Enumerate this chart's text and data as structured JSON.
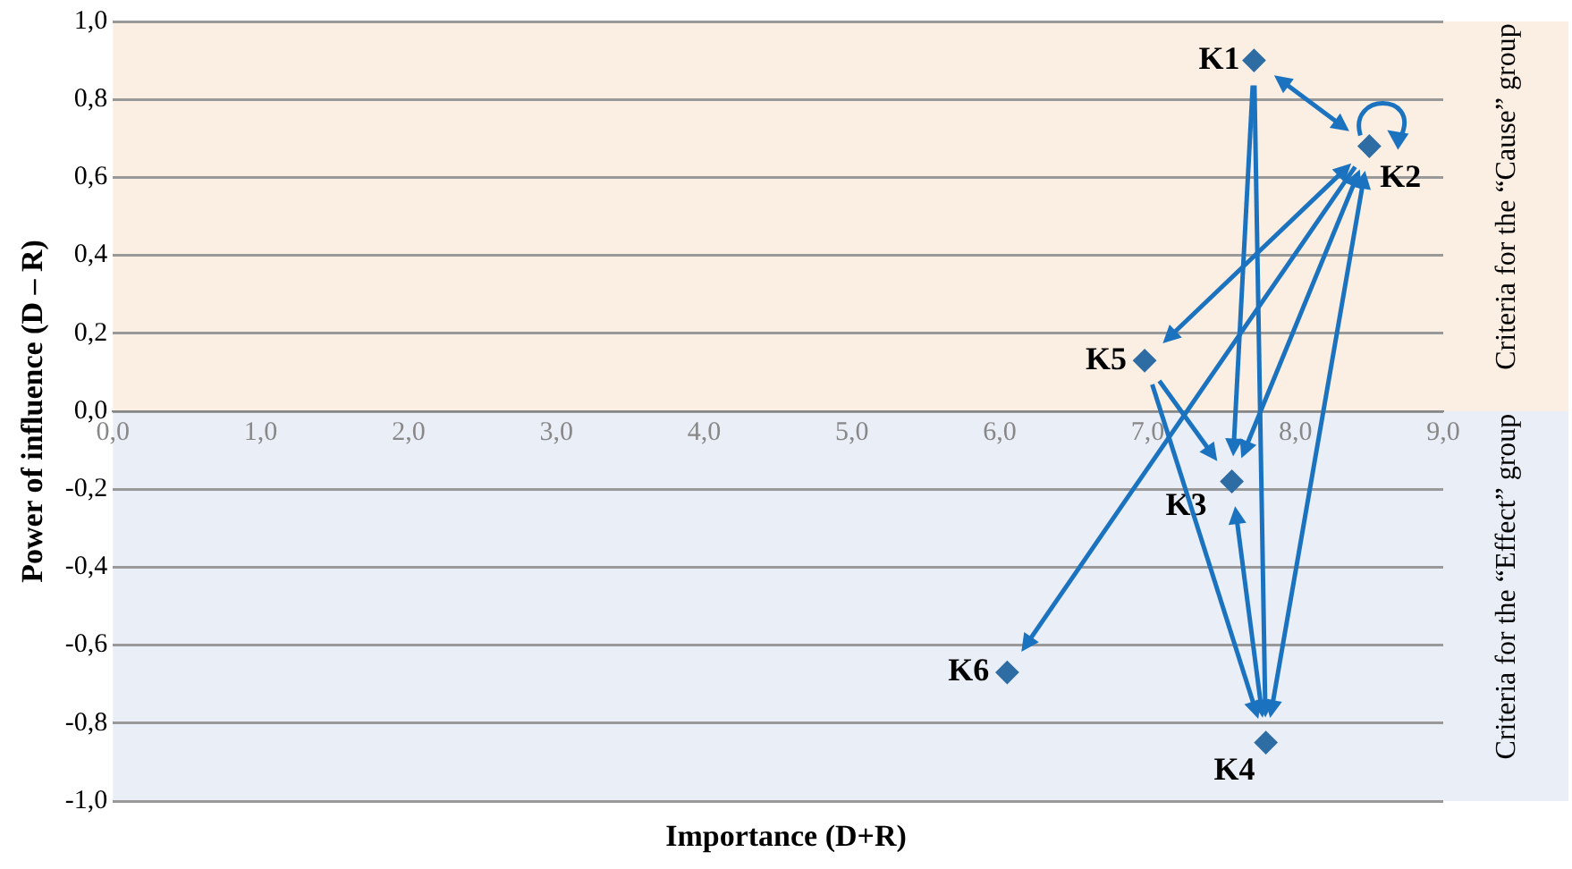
{
  "chart_data": {
    "type": "scatter",
    "xlabel": "Importance (D+R)",
    "ylabel": "Power of influence (D – R)",
    "series": [
      {
        "color": "#2e6da4",
        "x": [
          7.72,
          8.5,
          7.57,
          7.8,
          6.98,
          6.05
        ],
        "values": [
          0.9,
          0.68,
          -0.18,
          -0.85,
          0.13,
          -0.67
        ]
      }
    ],
    "annotations": [
      {
        "text": "K1",
        "x": 7.72,
        "y": 0.9
      },
      {
        "text": "K2",
        "x": 8.5,
        "y": 0.68
      },
      {
        "text": "K3",
        "x": 7.57,
        "y": -0.18
      },
      {
        "text": "K4",
        "x": 7.8,
        "y": -0.85
      },
      {
        "text": "K5",
        "x": 6.98,
        "y": 0.13
      },
      {
        "text": "K6",
        "x": 6.05,
        "y": -0.67
      }
    ],
    "bands": [
      {
        "axis": "y",
        "from": 0,
        "to": 1,
        "label": "Criteria for the “Cause” group",
        "color": "#fbefe4"
      },
      {
        "axis": "y",
        "from": -1,
        "to": 0,
        "label": "Criteria for the “Effect” group",
        "color": "#e9eef7"
      }
    ],
    "xlim": [
      0,
      9
    ],
    "xticks": [
      {
        "value": 0,
        "label": "0,0"
      },
      {
        "value": 1,
        "label": "1,0"
      },
      {
        "value": 2,
        "label": "2,0"
      },
      {
        "value": 3,
        "label": "3,0"
      },
      {
        "value": 4,
        "label": "4,0"
      },
      {
        "value": 5,
        "label": "5,0"
      },
      {
        "value": 6,
        "label": "6,0"
      },
      {
        "value": 7,
        "label": "7,0"
      },
      {
        "value": 8,
        "label": "8,0"
      },
      {
        "value": 9,
        "label": "9,0"
      }
    ],
    "ylim": [
      -1,
      1
    ],
    "yticks": [
      {
        "value": -1,
        "label": "-1,0"
      },
      {
        "value": -0.8,
        "label": "-0,8"
      },
      {
        "value": -0.6,
        "label": "-0,6"
      },
      {
        "value": -0.4,
        "label": "-0,4"
      },
      {
        "value": -0.2,
        "label": "-0,2"
      },
      {
        "value": 0,
        "label": "0,0"
      },
      {
        "value": 0.2,
        "label": "0,2"
      },
      {
        "value": 0.4,
        "label": "0,4"
      },
      {
        "value": 0.6,
        "label": "0,6"
      },
      {
        "value": 0.8,
        "label": "0,8"
      },
      {
        "value": 1,
        "label": "1,0"
      }
    ],
    "grid": "y",
    "legend": false,
    "marker": "diamond"
  }
}
